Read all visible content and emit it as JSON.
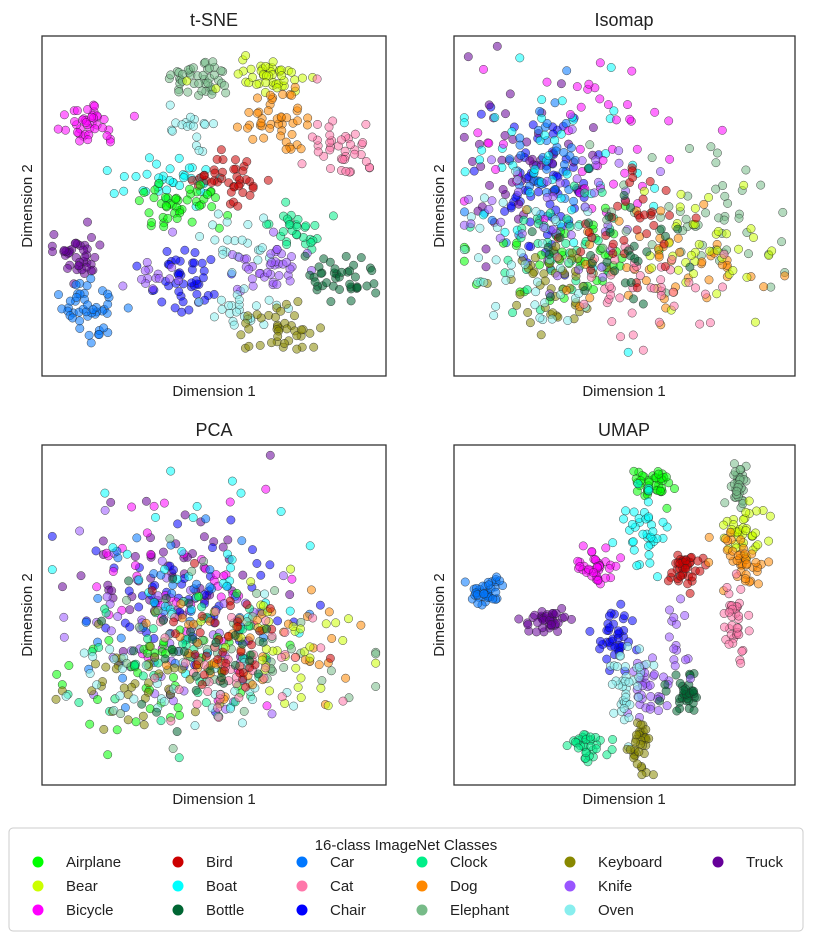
{
  "figure": {
    "legend": {
      "title": "16-class ImageNet Classes",
      "classes": [
        {
          "name": "Airplane",
          "color": "#00ff00"
        },
        {
          "name": "Bear",
          "color": "#ccff00"
        },
        {
          "name": "Bicycle",
          "color": "#ff00ff"
        },
        {
          "name": "Bird",
          "color": "#cc0000"
        },
        {
          "name": "Boat",
          "color": "#00ffff"
        },
        {
          "name": "Bottle",
          "color": "#006633"
        },
        {
          "name": "Car",
          "color": "#0077ff"
        },
        {
          "name": "Cat",
          "color": "#ff77aa"
        },
        {
          "name": "Chair",
          "color": "#0000ff"
        },
        {
          "name": "Clock",
          "color": "#00ee88"
        },
        {
          "name": "Dog",
          "color": "#ff8800"
        },
        {
          "name": "Elephant",
          "color": "#77bb88"
        },
        {
          "name": "Keyboard",
          "color": "#888800"
        },
        {
          "name": "Knife",
          "color": "#9955ff"
        },
        {
          "name": "Oven",
          "color": "#88eeee"
        },
        {
          "name": "Truck",
          "color": "#660099"
        }
      ]
    }
  },
  "chart_data": [
    {
      "type": "scatter",
      "title": "t-SNE",
      "xlabel": "Dimension 1",
      "ylabel": "Dimension 2",
      "xlim": [
        0,
        100
      ],
      "ylim": [
        0,
        100
      ],
      "grid": false,
      "clusters": [
        {
          "class": "Bicycle",
          "center": [
            12,
            25
          ],
          "spread": [
            5,
            3.5
          ],
          "count": 40
        },
        {
          "class": "Elephant",
          "center": [
            46,
            11
          ],
          "spread": [
            5,
            3
          ],
          "count": 45
        },
        {
          "class": "Bear",
          "center": [
            66,
            10
          ],
          "spread": [
            6,
            3.5
          ],
          "count": 45
        },
        {
          "class": "Dog",
          "center": [
            70,
            24
          ],
          "spread": [
            6,
            6
          ],
          "count": 45
        },
        {
          "class": "Cat",
          "center": [
            89,
            32
          ],
          "spread": [
            5,
            5
          ],
          "count": 40
        },
        {
          "class": "Oven",
          "center": [
            43,
            26
          ],
          "spread": [
            4,
            3
          ],
          "count": 18
        },
        {
          "class": "Boat",
          "center": [
            35,
            42
          ],
          "spread": [
            7,
            3.5
          ],
          "count": 40
        },
        {
          "class": "Bird",
          "center": [
            56,
            42
          ],
          "spread": [
            5,
            4
          ],
          "count": 40
        },
        {
          "class": "Airplane",
          "center": [
            40,
            50
          ],
          "spread": [
            6,
            3.5
          ],
          "count": 45
        },
        {
          "class": "Truck",
          "center": [
            8,
            65
          ],
          "spread": [
            4,
            3.5
          ],
          "count": 40
        },
        {
          "class": "Clock",
          "center": [
            75,
            57
          ],
          "spread": [
            4,
            3.5
          ],
          "count": 30
        },
        {
          "class": "Oven",
          "center": [
            56,
            60
          ],
          "spread": [
            5,
            3
          ],
          "count": 20
        },
        {
          "class": "Chair",
          "center": [
            43,
            72
          ],
          "spread": [
            7,
            5
          ],
          "count": 45
        },
        {
          "class": "Knife",
          "center": [
            68,
            69
          ],
          "spread": [
            6,
            4
          ],
          "count": 40
        },
        {
          "class": "Bottle",
          "center": [
            88,
            72
          ],
          "spread": [
            5,
            3.5
          ],
          "count": 40
        },
        {
          "class": "Car",
          "center": [
            12,
            82
          ],
          "spread": [
            4,
            5
          ],
          "count": 45
        },
        {
          "class": "Oven",
          "center": [
            58,
            82
          ],
          "spread": [
            5,
            3
          ],
          "count": 25
        },
        {
          "class": "Keyboard",
          "center": [
            70,
            87
          ],
          "spread": [
            5,
            4
          ],
          "count": 40
        },
        {
          "class": "Knife",
          "center": [
            32,
            70
          ],
          "spread": [
            4,
            4
          ],
          "count": 15
        }
      ]
    },
    {
      "type": "scatter",
      "title": "Isomap",
      "xlabel": "Dimension 1",
      "ylabel": "Dimension 2",
      "xlim": [
        0,
        100
      ],
      "ylim": [
        0,
        100
      ],
      "grid": false,
      "clusters": [
        {
          "class": "Chair",
          "center": [
            25,
            45
          ],
          "spread": [
            9,
            12
          ],
          "count": 70
        },
        {
          "class": "Truck",
          "center": [
            18,
            35
          ],
          "spread": [
            10,
            14
          ],
          "count": 50
        },
        {
          "class": "Car",
          "center": [
            24,
            40
          ],
          "spread": [
            9,
            12
          ],
          "count": 45
        },
        {
          "class": "Boat",
          "center": [
            28,
            40
          ],
          "spread": [
            14,
            16
          ],
          "count": 50
        },
        {
          "class": "Bicycle",
          "center": [
            40,
            30
          ],
          "spread": [
            18,
            14
          ],
          "count": 45
        },
        {
          "class": "Airplane",
          "center": [
            33,
            65
          ],
          "spread": [
            12,
            8
          ],
          "count": 45
        },
        {
          "class": "Clock",
          "center": [
            30,
            62
          ],
          "spread": [
            12,
            10
          ],
          "count": 40
        },
        {
          "class": "Keyboard",
          "center": [
            30,
            75
          ],
          "spread": [
            9,
            7
          ],
          "count": 45
        },
        {
          "class": "Oven",
          "center": [
            24,
            65
          ],
          "spread": [
            12,
            12
          ],
          "count": 45
        },
        {
          "class": "Knife",
          "center": [
            35,
            55
          ],
          "spread": [
            16,
            14
          ],
          "count": 40
        },
        {
          "class": "Elephant",
          "center": [
            72,
            55
          ],
          "spread": [
            16,
            10
          ],
          "count": 55
        },
        {
          "class": "Dog",
          "center": [
            65,
            68
          ],
          "spread": [
            14,
            8
          ],
          "count": 50
        },
        {
          "class": "Bear",
          "center": [
            77,
            65
          ],
          "spread": [
            12,
            8
          ],
          "count": 40
        },
        {
          "class": "Cat",
          "center": [
            53,
            75
          ],
          "spread": [
            12,
            8
          ],
          "count": 45
        },
        {
          "class": "Bird",
          "center": [
            52,
            55
          ],
          "spread": [
            10,
            8
          ],
          "count": 35
        },
        {
          "class": "Bottle",
          "center": [
            45,
            62
          ],
          "spread": [
            14,
            10
          ],
          "count": 30
        }
      ]
    },
    {
      "type": "scatter",
      "title": "PCA",
      "xlabel": "Dimension 1",
      "ylabel": "Dimension 2",
      "xlim": [
        0,
        100
      ],
      "ylim": [
        0,
        100
      ],
      "grid": false,
      "clusters": [
        {
          "class": "Truck",
          "center": [
            38,
            40
          ],
          "spread": [
            14,
            14
          ],
          "count": 55
        },
        {
          "class": "Chair",
          "center": [
            42,
            48
          ],
          "spread": [
            14,
            12
          ],
          "count": 60
        },
        {
          "class": "Bicycle",
          "center": [
            42,
            38
          ],
          "spread": [
            16,
            16
          ],
          "count": 45
        },
        {
          "class": "Knife",
          "center": [
            38,
            55
          ],
          "spread": [
            18,
            14
          ],
          "count": 50
        },
        {
          "class": "Car",
          "center": [
            38,
            50
          ],
          "spread": [
            16,
            12
          ],
          "count": 40
        },
        {
          "class": "Boat",
          "center": [
            45,
            40
          ],
          "spread": [
            16,
            16
          ],
          "count": 40
        },
        {
          "class": "Airplane",
          "center": [
            35,
            68
          ],
          "spread": [
            15,
            10
          ],
          "count": 50
        },
        {
          "class": "Clock",
          "center": [
            38,
            65
          ],
          "spread": [
            16,
            10
          ],
          "count": 40
        },
        {
          "class": "Keyboard",
          "center": [
            30,
            70
          ],
          "spread": [
            14,
            9
          ],
          "count": 45
        },
        {
          "class": "Oven",
          "center": [
            42,
            70
          ],
          "spread": [
            18,
            10
          ],
          "count": 40
        },
        {
          "class": "Elephant",
          "center": [
            58,
            58
          ],
          "spread": [
            18,
            12
          ],
          "count": 45
        },
        {
          "class": "Dog",
          "center": [
            62,
            60
          ],
          "spread": [
            14,
            9
          ],
          "count": 50
        },
        {
          "class": "Bear",
          "center": [
            72,
            62
          ],
          "spread": [
            14,
            9
          ],
          "count": 40
        },
        {
          "class": "Cat",
          "center": [
            55,
            66
          ],
          "spread": [
            14,
            9
          ],
          "count": 45
        },
        {
          "class": "Bird",
          "center": [
            52,
            58
          ],
          "spread": [
            12,
            9
          ],
          "count": 35
        },
        {
          "class": "Bottle",
          "center": [
            45,
            62
          ],
          "spread": [
            14,
            10
          ],
          "count": 30
        }
      ]
    },
    {
      "type": "scatter",
      "title": "UMAP",
      "xlabel": "Dimension 1",
      "ylabel": "Dimension 2",
      "xlim": [
        0,
        100
      ],
      "ylim": [
        0,
        100
      ],
      "grid": false,
      "clusters": [
        {
          "class": "Car",
          "center": [
            8,
            43
          ],
          "spread": [
            2.5,
            1.8
          ],
          "count": 40
        },
        {
          "class": "Truck",
          "center": [
            27,
            52
          ],
          "spread": [
            4,
            2
          ],
          "count": 40
        },
        {
          "class": "Bicycle",
          "center": [
            41,
            35
          ],
          "spread": [
            3,
            3
          ],
          "count": 40
        },
        {
          "class": "Airplane",
          "center": [
            59,
            10
          ],
          "spread": [
            3,
            2.5
          ],
          "count": 40
        },
        {
          "class": "Boat",
          "center": [
            56,
            25
          ],
          "spread": [
            3,
            6
          ],
          "count": 40
        },
        {
          "class": "Bird",
          "center": [
            68,
            35
          ],
          "spread": [
            3,
            3
          ],
          "count": 40
        },
        {
          "class": "Elephant",
          "center": [
            85,
            10
          ],
          "spread": [
            2,
            3.5
          ],
          "count": 40
        },
        {
          "class": "Bear",
          "center": [
            87,
            25
          ],
          "spread": [
            3,
            4
          ],
          "count": 40
        },
        {
          "class": "Dog",
          "center": [
            85,
            33
          ],
          "spread": [
            3,
            4
          ],
          "count": 40
        },
        {
          "class": "Cat",
          "center": [
            84,
            52
          ],
          "spread": [
            2.5,
            6
          ],
          "count": 40
        },
        {
          "class": "Chair",
          "center": [
            47,
            57
          ],
          "spread": [
            3,
            5
          ],
          "count": 40
        },
        {
          "class": "Knife",
          "center": [
            57,
            73
          ],
          "spread": [
            3,
            4
          ],
          "count": 35
        },
        {
          "class": "Bottle",
          "center": [
            69,
            74
          ],
          "spread": [
            3,
            3
          ],
          "count": 35
        },
        {
          "class": "Oven",
          "center": [
            50,
            70
          ],
          "spread": [
            4,
            8
          ],
          "count": 40
        },
        {
          "class": "Clock",
          "center": [
            39,
            90
          ],
          "spread": [
            3,
            2.5
          ],
          "count": 35
        },
        {
          "class": "Keyboard",
          "center": [
            55,
            90
          ],
          "spread": [
            2,
            4
          ],
          "count": 35
        },
        {
          "class": "Knife",
          "center": [
            66,
            58
          ],
          "spread": [
            2,
            6
          ],
          "count": 15
        }
      ]
    }
  ]
}
